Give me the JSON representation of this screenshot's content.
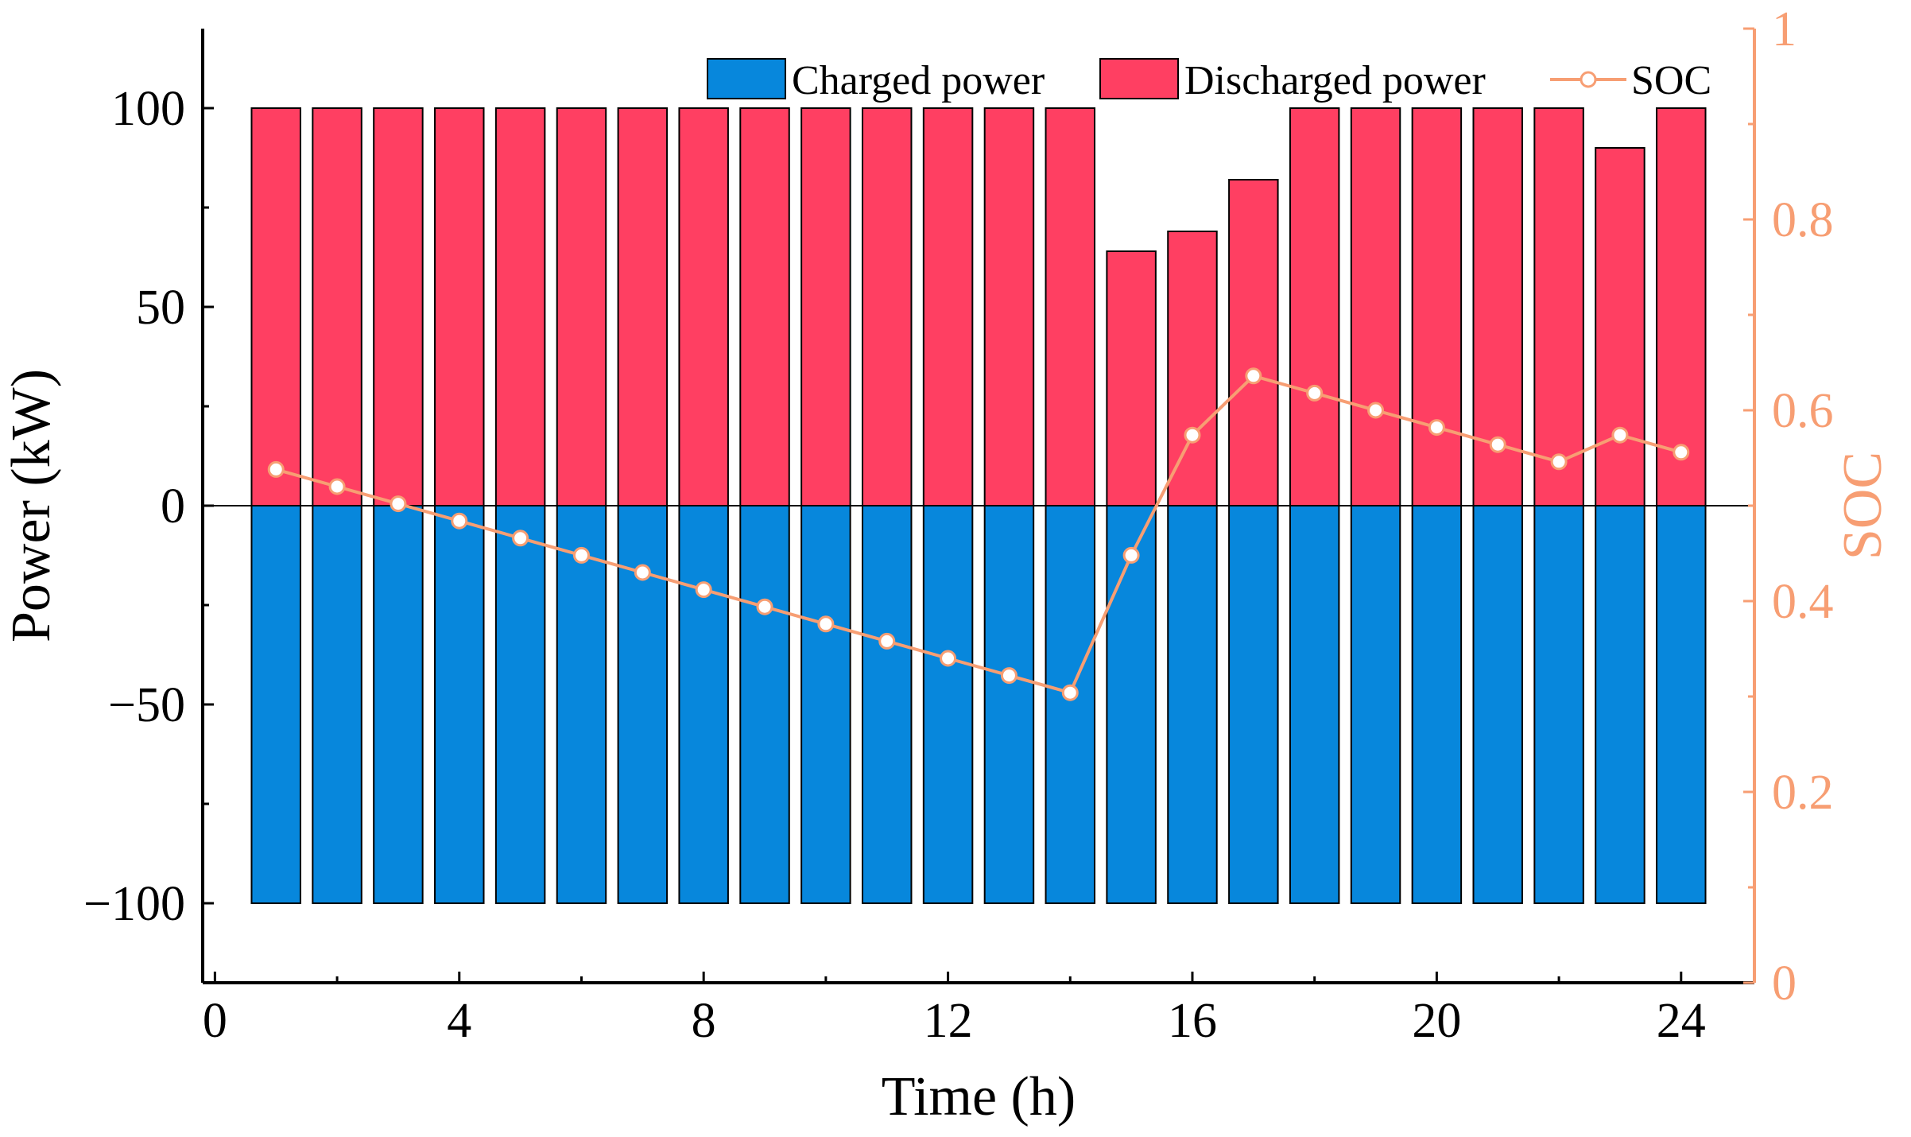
{
  "chart_data": {
    "type": "bar",
    "x": [
      1,
      2,
      3,
      4,
      5,
      6,
      7,
      8,
      9,
      10,
      11,
      12,
      13,
      14,
      15,
      16,
      17,
      18,
      19,
      20,
      21,
      22,
      23,
      24
    ],
    "series": [
      {
        "name": "Charged power",
        "kind": "bar",
        "axis": "left",
        "color": "#0787DC",
        "values": [
          -100,
          -100,
          -100,
          -100,
          -100,
          -100,
          -100,
          -100,
          -100,
          -100,
          -100,
          -100,
          -100,
          -100,
          -100,
          -100,
          -100,
          -100,
          -100,
          -100,
          -100,
          -100,
          -100,
          -100
        ]
      },
      {
        "name": "Discharged power",
        "kind": "bar",
        "axis": "left",
        "color": "#FF3F62",
        "values": [
          100,
          100,
          100,
          100,
          100,
          100,
          100,
          100,
          100,
          100,
          100,
          100,
          100,
          100,
          64,
          69,
          82,
          100,
          100,
          100,
          100,
          100,
          90,
          100
        ]
      },
      {
        "name": "SOC",
        "kind": "line",
        "axis": "right",
        "color": "#F79E73",
        "values": [
          0.538,
          0.52,
          0.502,
          0.484,
          0.466,
          0.448,
          0.43,
          0.412,
          0.394,
          0.376,
          0.358,
          0.34,
          0.322,
          0.304,
          0.448,
          0.574,
          0.636,
          0.618,
          0.6,
          0.582,
          0.564,
          0.546,
          0.574,
          0.556
        ]
      }
    ],
    "xlabel": "Time (h)",
    "ylabel": "Power (kW)",
    "y2label": "SOC",
    "xlim": [
      -0.2,
      25.2
    ],
    "ylim": [
      -120,
      120
    ],
    "y2lim": [
      0,
      1
    ],
    "xticks": [
      0,
      4,
      8,
      12,
      16,
      20,
      24
    ],
    "yticks": [
      -100,
      -50,
      0,
      50,
      100
    ],
    "y2ticks": [
      0,
      0.2,
      0.4,
      0.6,
      0.8,
      1
    ],
    "xtick_labels": [
      "0",
      "4",
      "8",
      "12",
      "16",
      "20",
      "24"
    ],
    "ytick_labels": [
      "−100",
      "−50",
      "0",
      "50",
      "100"
    ],
    "y2tick_labels": [
      "0",
      "0.2",
      "0.4",
      "0.6",
      "0.8",
      "1"
    ],
    "legend": [
      "Charged power",
      "Discharged power",
      "SOC"
    ],
    "legend_position": "top-right",
    "grid": false
  }
}
